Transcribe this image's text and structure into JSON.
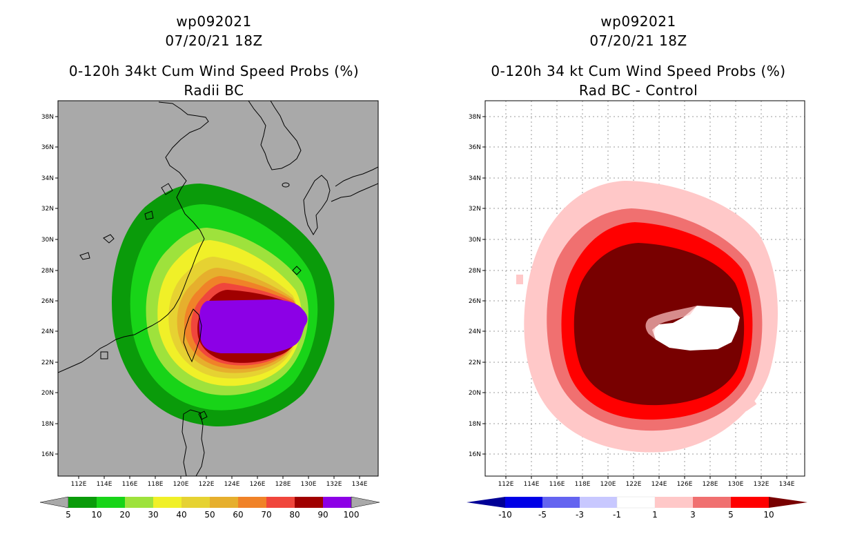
{
  "left_panel": {
    "storm_id": "wp092021",
    "datetime": "07/20/21 18Z",
    "product": "0-120h 34kt Cum Wind Speed Probs (%)",
    "subtitle": "Radii BC",
    "background_color": "#a9a9a9",
    "lat_ticks": [
      "38N",
      "36N",
      "34N",
      "32N",
      "30N",
      "28N",
      "26N",
      "24N",
      "22N",
      "20N",
      "18N",
      "16N"
    ],
    "lon_ticks": [
      "112E",
      "114E",
      "116E",
      "118E",
      "120E",
      "122E",
      "124E",
      "126E",
      "128E",
      "130E",
      "132E",
      "134E"
    ],
    "colorbar": {
      "labels": [
        "5",
        "10",
        "20",
        "30",
        "40",
        "50",
        "60",
        "70",
        "80",
        "90",
        "100"
      ],
      "colors": [
        "#0a9b0a",
        "#18d418",
        "#9ee23c",
        "#f0f028",
        "#e6d232",
        "#e6af2d",
        "#f08228",
        "#f0463c",
        "#a00000",
        "#8c00e6"
      ],
      "under_color": "#a9a9a9",
      "over_color": "#a9a9a9"
    },
    "contour_levels": [
      {
        "level": 5,
        "color": "#0a9b0a"
      },
      {
        "level": 10,
        "color": "#18d418"
      },
      {
        "level": 20,
        "color": "#9ee23c"
      },
      {
        "level": 30,
        "color": "#f0f028"
      },
      {
        "level": 40,
        "color": "#e6d232"
      },
      {
        "level": 50,
        "color": "#e6af2d"
      },
      {
        "level": 60,
        "color": "#f08228"
      },
      {
        "level": 70,
        "color": "#f0463c"
      },
      {
        "level": 80,
        "color": "#a00000"
      },
      {
        "level": 90,
        "color": "#8c00e6"
      }
    ]
  },
  "right_panel": {
    "storm_id": "wp092021",
    "datetime": "07/20/21 18Z",
    "product": "0-120h 34 kt Cum Wind Speed Probs (%)",
    "subtitle": "Rad BC - Control",
    "background_color": "#ffffff",
    "lat_ticks": [
      "38N",
      "36N",
      "34N",
      "32N",
      "30N",
      "28N",
      "26N",
      "24N",
      "22N",
      "20N",
      "18N",
      "16N"
    ],
    "lon_ticks": [
      "112E",
      "114E",
      "116E",
      "118E",
      "120E",
      "122E",
      "124E",
      "126E",
      "128E",
      "130E",
      "132E",
      "134E"
    ],
    "colorbar": {
      "labels": [
        "-10",
        "-5",
        "-3",
        "-1",
        "1",
        "3",
        "5",
        "10"
      ],
      "colors": [
        "#0000e6",
        "#6464f0",
        "#c8c8ff",
        "#ffffff",
        "#ffc8c8",
        "#f07070",
        "#ff0000"
      ],
      "under_color": "#000096",
      "over_color": "#780000"
    },
    "contour_levels": [
      {
        "level": 1,
        "color": "#ffc8c8"
      },
      {
        "level": 3,
        "color": "#f07070"
      },
      {
        "level": 5,
        "color": "#ff0000"
      },
      {
        "level": 10,
        "color": "#780000"
      }
    ]
  }
}
